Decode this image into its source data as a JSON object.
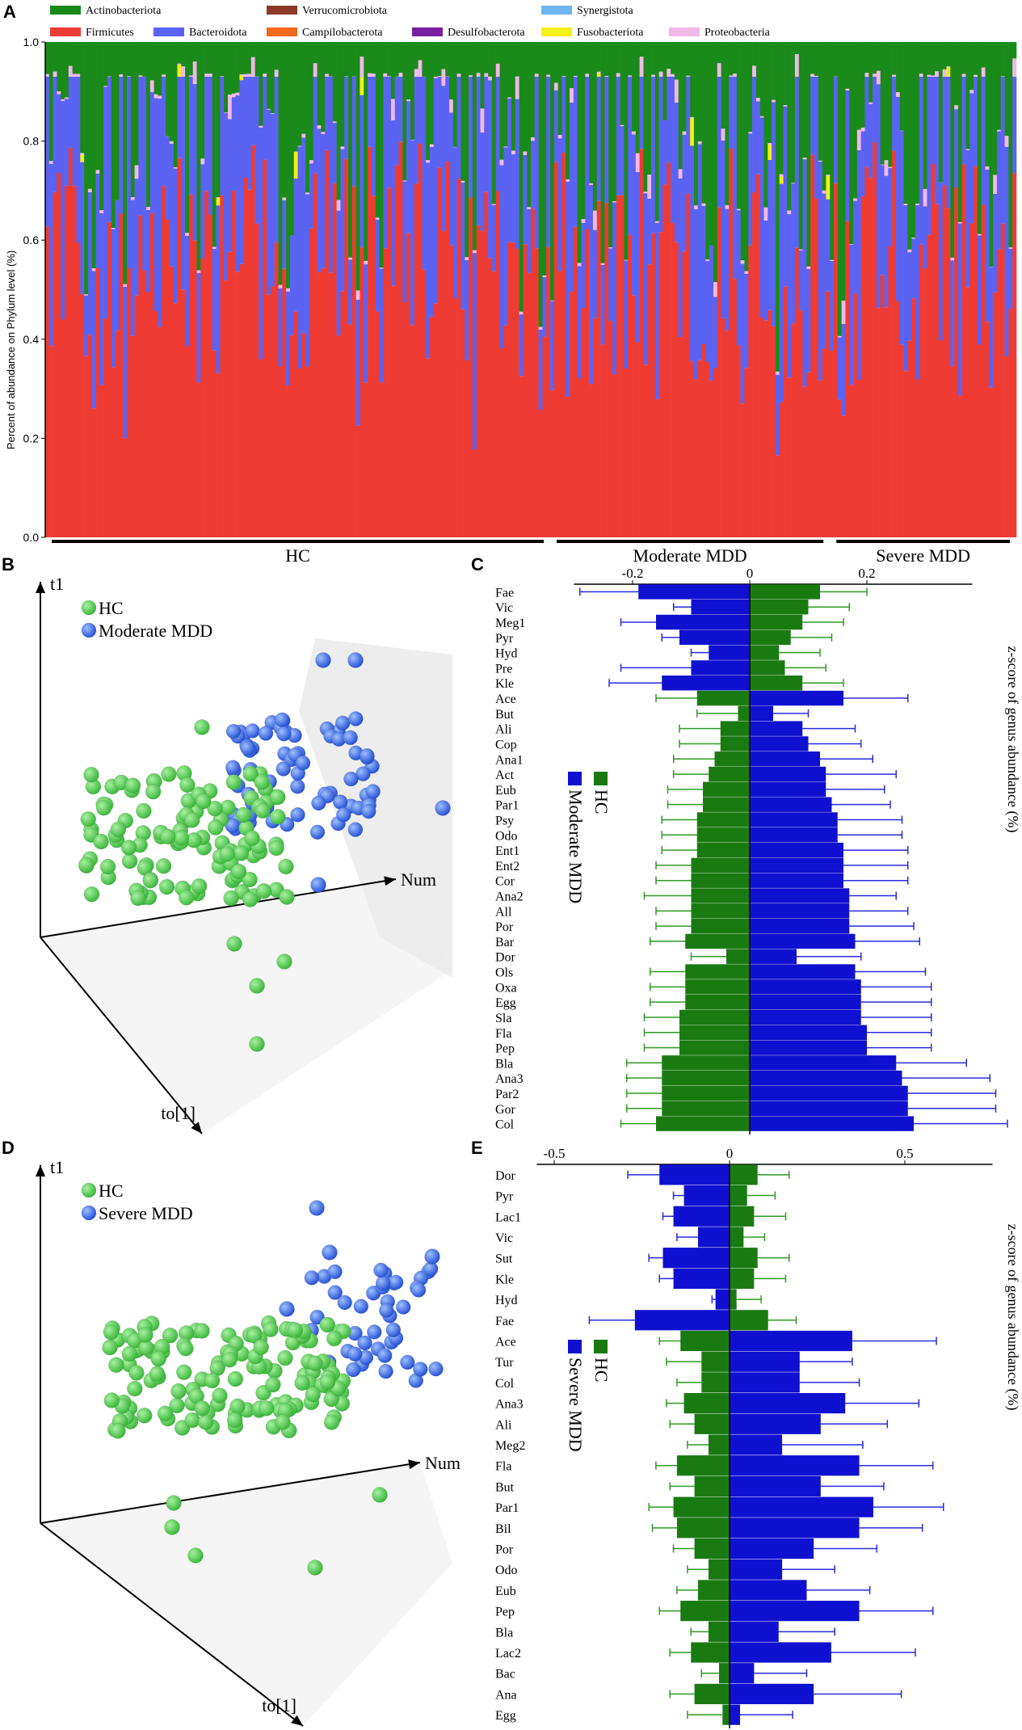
{
  "panels": {
    "A": "A",
    "B": "B",
    "C": "C",
    "D": "D",
    "E": "E"
  },
  "chart_data": [
    {
      "id": "A",
      "type": "bar",
      "stacked": true,
      "ylabel": "Percent of abundance on Phylum level (%)",
      "ylim": [
        0,
        1.0
      ],
      "yticks": [
        0.0,
        0.2,
        0.4,
        0.6,
        0.8,
        1.0
      ],
      "ytick_labels": [
        "0.0",
        "0.2",
        "0.4",
        "0.6",
        "0.8",
        "1.0"
      ],
      "legend": [
        {
          "name": "Actinobacteriota",
          "color": "#1a8a1a"
        },
        {
          "name": "Verrucomicrobiota",
          "color": "#8b3a2a"
        },
        {
          "name": "Synergistota",
          "color": "#6fb4f0"
        },
        {
          "name": "Firmicutes",
          "color": "#ee3b34"
        },
        {
          "name": "Bacteroidota",
          "color": "#5a63f2"
        },
        {
          "name": "Campilobacterota",
          "color": "#f26b1d"
        },
        {
          "name": "Desulfobacterota",
          "color": "#7a1fa2"
        },
        {
          "name": "Fusobacteriota",
          "color": "#f3ef1a"
        },
        {
          "name": "Proteobacteria",
          "color": "#f2b8e8"
        }
      ],
      "groups": [
        {
          "label": "HC",
          "start_sample": 1,
          "end_sample": 130
        },
        {
          "label": "Moderate MDD",
          "start_sample": 131,
          "end_sample": 202
        },
        {
          "label": "Severe MDD",
          "start_sample": 203,
          "end_sample": 250
        }
      ],
      "n_samples": 250,
      "series_mean": {
        "Firmicutes": 0.55,
        "Bacteroidota": 0.3,
        "Proteobacteria": 0.03,
        "Fusobacteriota": 0.01,
        "Actinobacteriota": 0.08
      }
    },
    {
      "id": "B",
      "type": "scatter",
      "dims": 3,
      "axes": [
        "t1",
        "Num",
        "to[1]"
      ],
      "series": [
        {
          "name": "HC",
          "color": "#5cd65c",
          "count": 118
        },
        {
          "name": "Moderate MDD",
          "color": "#3b6ff0",
          "count": 72
        }
      ]
    },
    {
      "id": "C",
      "type": "bar",
      "orientation": "horizontal",
      "xlabel": "z-score of genus abundance (%)",
      "xlim": [
        -0.3,
        0.38
      ],
      "xticks": [
        -0.2,
        0,
        0.2
      ],
      "xtick_labels": [
        "-0.2",
        "0",
        "0.2"
      ],
      "legend": [
        {
          "name": "HC",
          "color": "#1a7a12"
        },
        {
          "name": "Moderate MDD",
          "color": "#1010d0"
        }
      ],
      "categories": [
        "Fae",
        "Vic",
        "Meg1",
        "Pyr",
        "Hyd",
        "Pre",
        "Kle",
        "Ace",
        "But",
        "Ali",
        "Cop",
        "Ana1",
        "Act",
        "Eub",
        "Par1",
        "Psy",
        "Odo",
        "Ent1",
        "Ent2",
        "Cor",
        "Ana2",
        "All",
        "Por",
        "Bar",
        "Dor",
        "Ols",
        "Oxa",
        "Egg",
        "Sla",
        "Fla",
        "Pep",
        "Bla",
        "Ana3",
        "Par2",
        "Gor",
        "Col"
      ],
      "series": [
        {
          "name": "HC",
          "values": [
            0.12,
            0.1,
            0.09,
            0.07,
            0.05,
            0.06,
            0.09,
            -0.09,
            -0.02,
            -0.05,
            -0.05,
            -0.06,
            -0.07,
            -0.08,
            -0.08,
            -0.09,
            -0.09,
            -0.09,
            -0.1,
            -0.1,
            -0.1,
            -0.1,
            -0.1,
            -0.11,
            -0.04,
            -0.11,
            -0.11,
            -0.11,
            -0.12,
            -0.12,
            -0.12,
            -0.15,
            -0.15,
            -0.15,
            -0.15,
            -0.16
          ],
          "errors": [
            0.08,
            0.07,
            0.07,
            0.07,
            0.07,
            0.07,
            0.07,
            0.07,
            0.07,
            0.07,
            0.07,
            0.07,
            0.06,
            0.06,
            0.06,
            0.06,
            0.06,
            0.06,
            0.06,
            0.06,
            0.08,
            0.06,
            0.06,
            0.06,
            0.06,
            0.06,
            0.06,
            0.06,
            0.06,
            0.06,
            0.06,
            0.06,
            0.06,
            0.06,
            0.06,
            0.06
          ]
        },
        {
          "name": "Moderate MDD",
          "values": [
            -0.19,
            -0.1,
            -0.16,
            -0.12,
            -0.07,
            -0.1,
            -0.15,
            0.16,
            0.04,
            0.09,
            0.1,
            0.12,
            0.13,
            0.13,
            0.14,
            0.15,
            0.15,
            0.16,
            0.16,
            0.16,
            0.17,
            0.17,
            0.17,
            0.18,
            0.08,
            0.18,
            0.19,
            0.19,
            0.19,
            0.2,
            0.2,
            0.25,
            0.26,
            0.27,
            0.27,
            0.28
          ],
          "errors": [
            0.1,
            0.03,
            0.06,
            0.03,
            0.03,
            0.12,
            0.09,
            0.11,
            0.06,
            0.09,
            0.09,
            0.09,
            0.12,
            0.1,
            0.1,
            0.11,
            0.11,
            0.11,
            0.11,
            0.11,
            0.08,
            0.1,
            0.11,
            0.11,
            0.11,
            0.12,
            0.12,
            0.12,
            0.12,
            0.11,
            0.11,
            0.12,
            0.15,
            0.15,
            0.15,
            0.16
          ]
        }
      ]
    },
    {
      "id": "D",
      "type": "scatter",
      "dims": 3,
      "axes": [
        "t1",
        "Num",
        "to[1]"
      ],
      "series": [
        {
          "name": "HC",
          "color": "#5cd65c",
          "count": 135
        },
        {
          "name": "Severe MDD",
          "color": "#3b6ff0",
          "count": 43
        }
      ]
    },
    {
      "id": "E",
      "type": "bar",
      "orientation": "horizontal",
      "xlabel": "z-score of genus abundance (%)",
      "xlim": [
        -0.55,
        0.75
      ],
      "xticks": [
        -0.5,
        0,
        0.5
      ],
      "xtick_labels": [
        "-0.5",
        "0",
        "0.5"
      ],
      "legend": [
        {
          "name": "HC",
          "color": "#1a7a12"
        },
        {
          "name": "Severe MDD",
          "color": "#1010d0"
        }
      ],
      "categories": [
        "Dor",
        "Pyr",
        "Lac1",
        "Vic",
        "Sut",
        "Kle",
        "Hyd",
        "Fae",
        "Ace",
        "Tur",
        "Col",
        "Ana3",
        "Ali",
        "Meg2",
        "Fla",
        "But",
        "Par1",
        "Bil",
        "Por",
        "Odo",
        "Eub",
        "Pep",
        "Bla",
        "Lac2",
        "Bac",
        "Ana",
        "Egg"
      ],
      "series": [
        {
          "name": "HC",
          "values": [
            0.08,
            0.05,
            0.07,
            0.04,
            0.08,
            0.07,
            0.02,
            0.11,
            -0.14,
            -0.08,
            -0.08,
            -0.13,
            -0.1,
            -0.06,
            -0.15,
            -0.1,
            -0.16,
            -0.15,
            -0.1,
            -0.06,
            -0.09,
            -0.14,
            -0.06,
            -0.11,
            -0.03,
            -0.1,
            -0.02
          ],
          "errors": [
            0.09,
            0.08,
            0.09,
            0.06,
            0.09,
            0.09,
            0.07,
            0.08,
            0.06,
            0.1,
            0.07,
            0.05,
            0.07,
            0.06,
            0.06,
            0.07,
            0.07,
            0.07,
            0.06,
            0.06,
            0.06,
            0.06,
            0.05,
            0.06,
            0.05,
            0.07,
            0.1
          ]
        },
        {
          "name": "Severe MDD",
          "values": [
            -0.2,
            -0.13,
            -0.16,
            -0.09,
            -0.19,
            -0.16,
            -0.04,
            -0.27,
            0.35,
            0.2,
            0.2,
            0.33,
            0.26,
            0.15,
            0.37,
            0.26,
            0.41,
            0.37,
            0.24,
            0.15,
            0.22,
            0.37,
            0.14,
            0.29,
            0.07,
            0.24,
            0.03
          ],
          "errors": [
            0.09,
            0.03,
            0.03,
            0.06,
            0.04,
            0.04,
            0.01,
            0.13,
            0.24,
            0.15,
            0.17,
            0.21,
            0.19,
            0.23,
            0.21,
            0.18,
            0.2,
            0.18,
            0.18,
            0.15,
            0.18,
            0.21,
            0.16,
            0.24,
            0.15,
            0.25,
            0.15
          ]
        }
      ]
    }
  ]
}
